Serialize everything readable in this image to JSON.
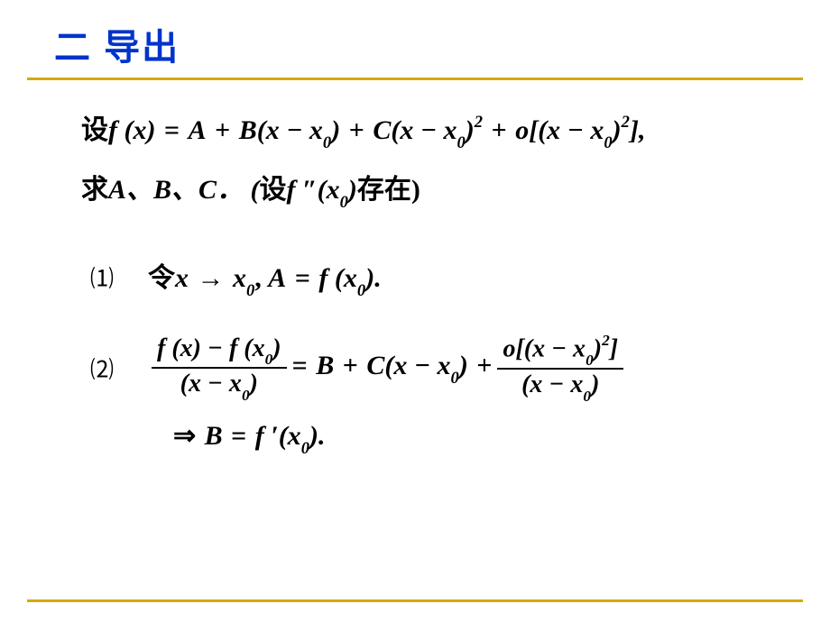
{
  "title": {
    "text": "二  导出",
    "color": "#0033cc",
    "underline_color": "#d6a800"
  },
  "lines": {
    "setup1_prefix_cn": "设",
    "setup1_math_a": "f (x)",
    "setup1_eq": " = ",
    "setup1_A": "A",
    "setup1_plus1": " + ",
    "setup1_B": "B",
    "setup1_px1": "(x − x",
    "setup1_sub0a": "0",
    "setup1_close1": ")",
    "setup1_plus2": " + ",
    "setup1_C": "C",
    "setup1_px2": "(x − x",
    "setup1_sub0b": "0",
    "setup1_close2": ")",
    "setup1_sup2a": "2",
    "setup1_plus3": " + ",
    "setup1_o": "o",
    "setup1_brk1": "[(x − x",
    "setup1_sub0c": "0",
    "setup1_close3": ")",
    "setup1_sup2b": "2",
    "setup1_brk2": "],",
    "setup2_prefix_cn": "求",
    "setup2_list": "A、B、C．  (",
    "setup2_shecn": "设",
    "setup2_fpp": "f ″(x",
    "setup2_sub0": "0",
    "setup2_close": ")",
    "setup2_exist_cn": "存在",
    "setup2_end": ")",
    "step1_label": "⑴",
    "step1_ling": "令",
    "step1_x": "x",
    "step1_arrow": " → ",
    "step1_x0": "x",
    "step1_sub0": "0",
    "step1_comma": ",   ",
    "step1_A": "A",
    "step1_eq": " = ",
    "step1_fx0": "f (x",
    "step1_sub0b": "0",
    "step1_end": ").",
    "step2_label": "⑵",
    "step2_num": "f (x) − f (x",
    "step2_num_sub0": "0",
    "step2_num_end": ")",
    "step2_den": "(x − x",
    "step2_den_sub0": "0",
    "step2_den_end": ")",
    "step2_eq": " = ",
    "step2_B": "B",
    "step2_plus1": " + ",
    "step2_C": "C",
    "step2_px": "(x − x",
    "step2_px_sub0": "0",
    "step2_px_end": ")",
    "step2_plus2": " + ",
    "step2_num2": "o[(x − x",
    "step2_num2_sub0": "0",
    "step2_num2_close": ")",
    "step2_num2_sup": "2",
    "step2_num2_brk": "]",
    "step2_den2": "(x − x",
    "step2_den2_sub0": "0",
    "step2_den2_end": ")",
    "step3_imply": "⇒ ",
    "step3_B": "B",
    "step3_eq": " = ",
    "step3_fp": "f ′(x",
    "step3_sub0": "0",
    "step3_end": ")."
  },
  "style": {
    "bottom_line_color": "#d6a800",
    "text_color": "#000000",
    "math_fontsize": 30,
    "title_fontsize": 40
  }
}
